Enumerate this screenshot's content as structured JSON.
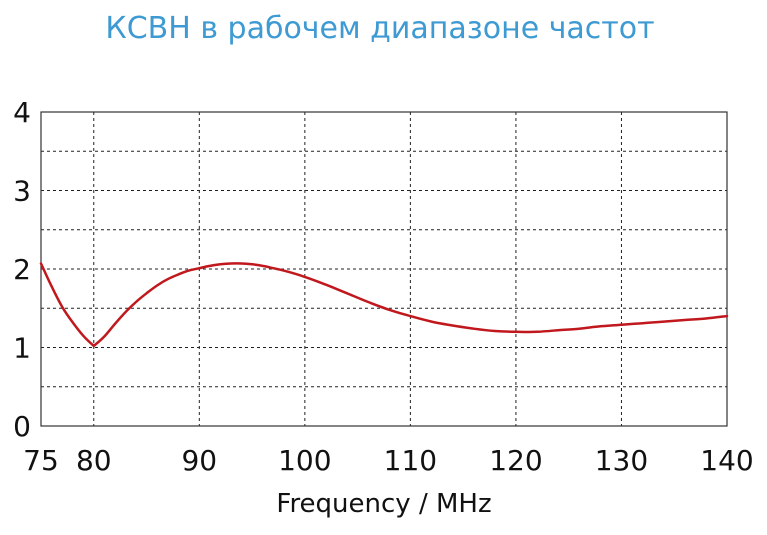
{
  "chart_data": {
    "type": "line",
    "title": "КСВН в рабочем диапазоне частот",
    "xlabel": "Frequency / MHz",
    "ylabel": "",
    "xlim": [
      75,
      140
    ],
    "ylim": [
      0,
      4
    ],
    "x_ticks": [
      75,
      80,
      90,
      100,
      110,
      120,
      130,
      140
    ],
    "y_ticks": [
      0,
      1,
      2,
      3,
      4
    ],
    "x_grid": [
      80,
      90,
      100,
      110,
      120,
      130
    ],
    "y_grid": [
      0.5,
      1,
      1.5,
      2,
      2.5,
      3,
      3.5
    ],
    "grid": true,
    "series": [
      {
        "color": "#c0181d",
        "x": [
          75,
          76,
          77,
          78,
          79,
          80,
          81,
          82,
          83,
          84,
          85,
          86,
          87,
          88,
          89,
          90,
          91,
          92,
          93,
          94,
          95,
          96,
          97,
          98,
          100,
          102,
          104,
          106,
          108,
          110,
          112,
          114,
          116,
          118,
          120,
          122,
          124,
          126,
          128,
          130,
          132,
          134,
          136,
          138,
          140
        ],
        "y": [
          2.07,
          1.78,
          1.52,
          1.32,
          1.15,
          1.02,
          1.14,
          1.3,
          1.45,
          1.58,
          1.69,
          1.79,
          1.87,
          1.93,
          1.98,
          2.01,
          2.04,
          2.06,
          2.07,
          2.07,
          2.06,
          2.04,
          2.01,
          1.98,
          1.9,
          1.8,
          1.69,
          1.58,
          1.48,
          1.4,
          1.33,
          1.28,
          1.24,
          1.21,
          1.2,
          1.2,
          1.22,
          1.24,
          1.27,
          1.29,
          1.31,
          1.33,
          1.35,
          1.37,
          1.4
        ]
      }
    ]
  }
}
